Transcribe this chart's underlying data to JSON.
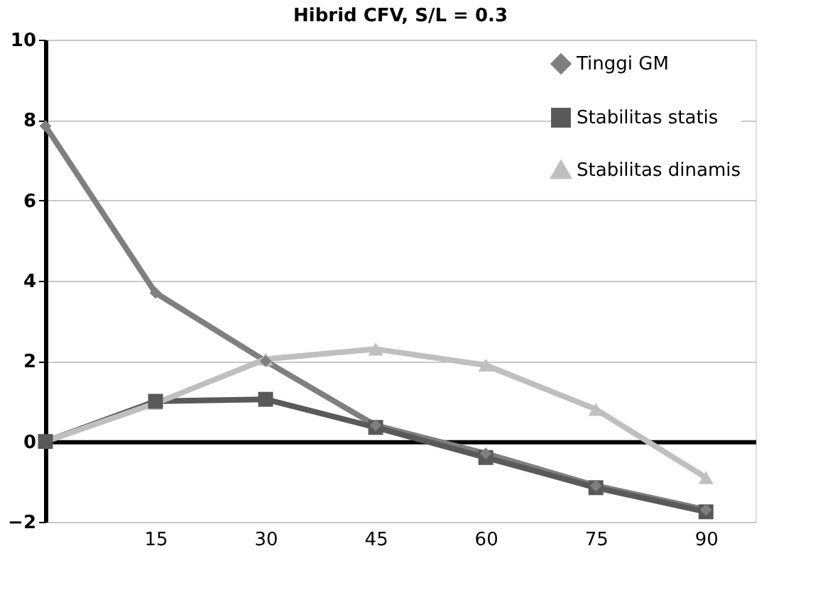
{
  "chart_data": {
    "type": "line",
    "title": "Hibrid CFV, S/L = 0.3",
    "categories": [
      null,
      "15",
      "30",
      "45",
      "60",
      "75",
      "90"
    ],
    "series": [
      {
        "name": "Tinggi GM",
        "color": "#7f7f7f",
        "marker": "diamond",
        "values": [
          7.85,
          3.7,
          2.0,
          0.4,
          -0.3,
          -1.1,
          -1.7
        ]
      },
      {
        "name": "Stabilitas statis",
        "color": "#595959",
        "marker": "square",
        "values": [
          0,
          1.0,
          1.05,
          0.35,
          -0.4,
          -1.15,
          -1.75
        ]
      },
      {
        "name": "Stabilitas dinamis",
        "color": "#bfbfbf",
        "marker": "triangle",
        "values": [
          0,
          0.95,
          2.05,
          2.3,
          1.9,
          0.8,
          -0.9
        ]
      }
    ],
    "ylim": [
      -2,
      10
    ],
    "yticks": [
      -2,
      0,
      2,
      4,
      6,
      8,
      10
    ],
    "grid": "y",
    "legend": "top right",
    "line_style": "solid"
  }
}
